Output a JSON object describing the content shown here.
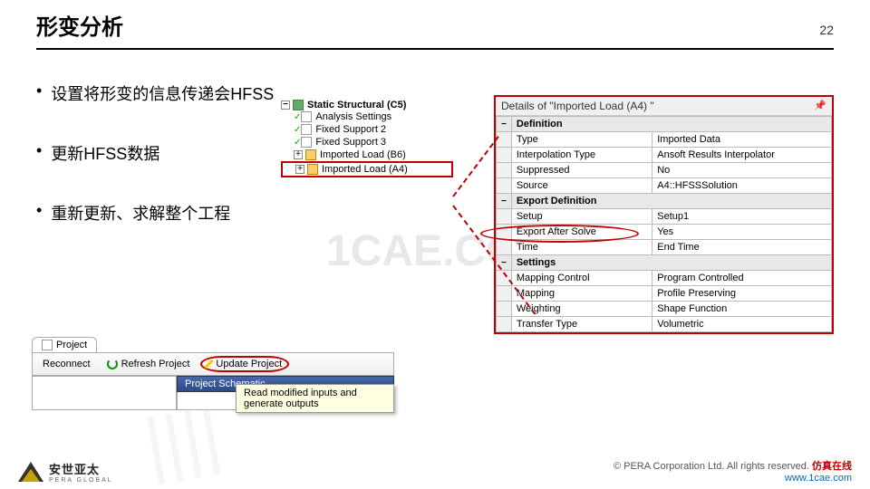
{
  "header": {
    "title": "形变分析",
    "page": "22"
  },
  "bullets": [
    "设置将形变的信息传递会HFSS",
    "更新HFSS数据",
    "重新更新、求解整个工程"
  ],
  "tree": {
    "root": "Static Structural (C5)",
    "items": [
      {
        "label": "Analysis Settings",
        "type": "doc"
      },
      {
        "label": "Fixed Support 2",
        "type": "doc"
      },
      {
        "label": "Fixed Support 3",
        "type": "doc"
      },
      {
        "label": "Imported Load (B6)",
        "type": "arrow",
        "plus": true
      },
      {
        "label": "Imported Load (A4)",
        "type": "arrow",
        "plus": true,
        "highlighted": true
      }
    ]
  },
  "details": {
    "title": "Details of \"Imported Load (A4) \"",
    "sections": [
      {
        "name": "Definition",
        "rows": [
          [
            "Type",
            "Imported Data"
          ],
          [
            "Interpolation Type",
            "Ansoft Results Interpolator"
          ],
          [
            "Suppressed",
            "No"
          ],
          [
            "Source",
            "A4::HFSSSolution"
          ]
        ]
      },
      {
        "name": "Export Definition",
        "rows": [
          [
            "Setup",
            "Setup1"
          ],
          [
            "Export After Solve",
            "Yes"
          ],
          [
            "Time",
            "End Time"
          ]
        ]
      },
      {
        "name": "Settings",
        "rows": [
          [
            "Mapping Control",
            "Program Controlled"
          ],
          [
            "Mapping",
            "Profile Preserving"
          ],
          [
            "Weighting",
            "Shape Function"
          ],
          [
            "Transfer Type",
            "Volumetric"
          ]
        ]
      }
    ]
  },
  "toolbar": {
    "tab": "Project",
    "reconnect": "Reconnect",
    "refresh": "Refresh Project",
    "update": "Update Project",
    "schematic": "Project Schematic",
    "tooltip": "Read modified inputs and generate outputs"
  },
  "footer": {
    "logo_cn": "安世亚太",
    "logo_en": "PERA GLOBAL",
    "copyright": "©   PERA Corporation Ltd. All rights reserved.",
    "brand": "仿真在线",
    "url": "www.1cae.com"
  },
  "watermark": "1CAE.COM"
}
